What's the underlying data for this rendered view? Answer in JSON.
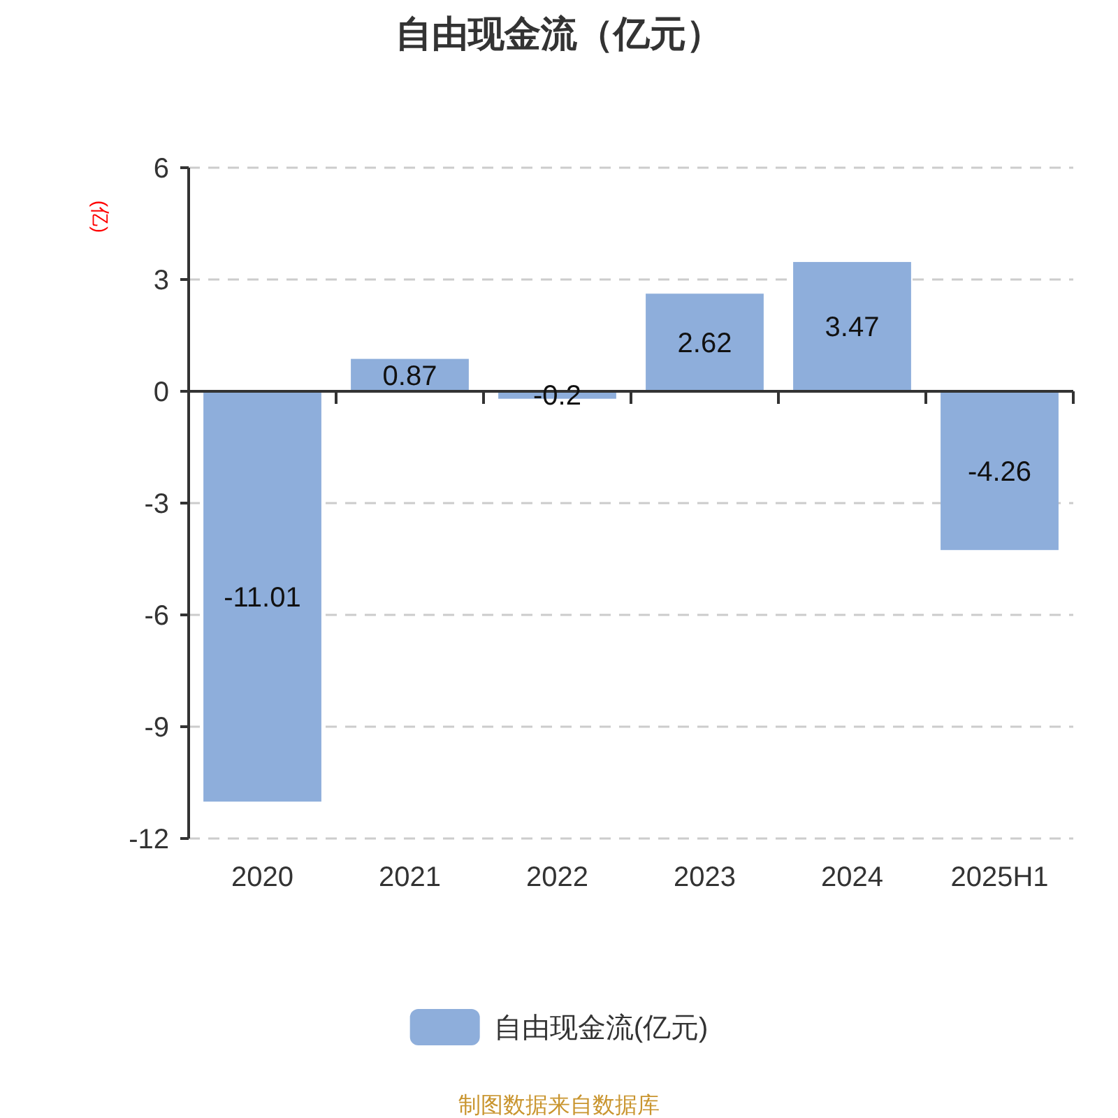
{
  "chart_data": {
    "type": "bar",
    "title": "自由现金流（亿元）",
    "ylabel": "(亿)",
    "categories": [
      "2020",
      "2021",
      "2022",
      "2023",
      "2024",
      "2025H1"
    ],
    "series": [
      {
        "name": "自由现金流(亿元)",
        "color": "#8eaedb",
        "values": [
          -11.01,
          0.87,
          -0.2,
          2.62,
          3.47,
          -4.26
        ]
      }
    ],
    "ylim": [
      -12,
      6
    ],
    "yticks": [
      -12,
      -9,
      -6,
      -3,
      0,
      3,
      6
    ],
    "grid": "y",
    "legend": "bottom",
    "data_labels": true,
    "annotations": [
      "制图数据来自数据库"
    ]
  }
}
